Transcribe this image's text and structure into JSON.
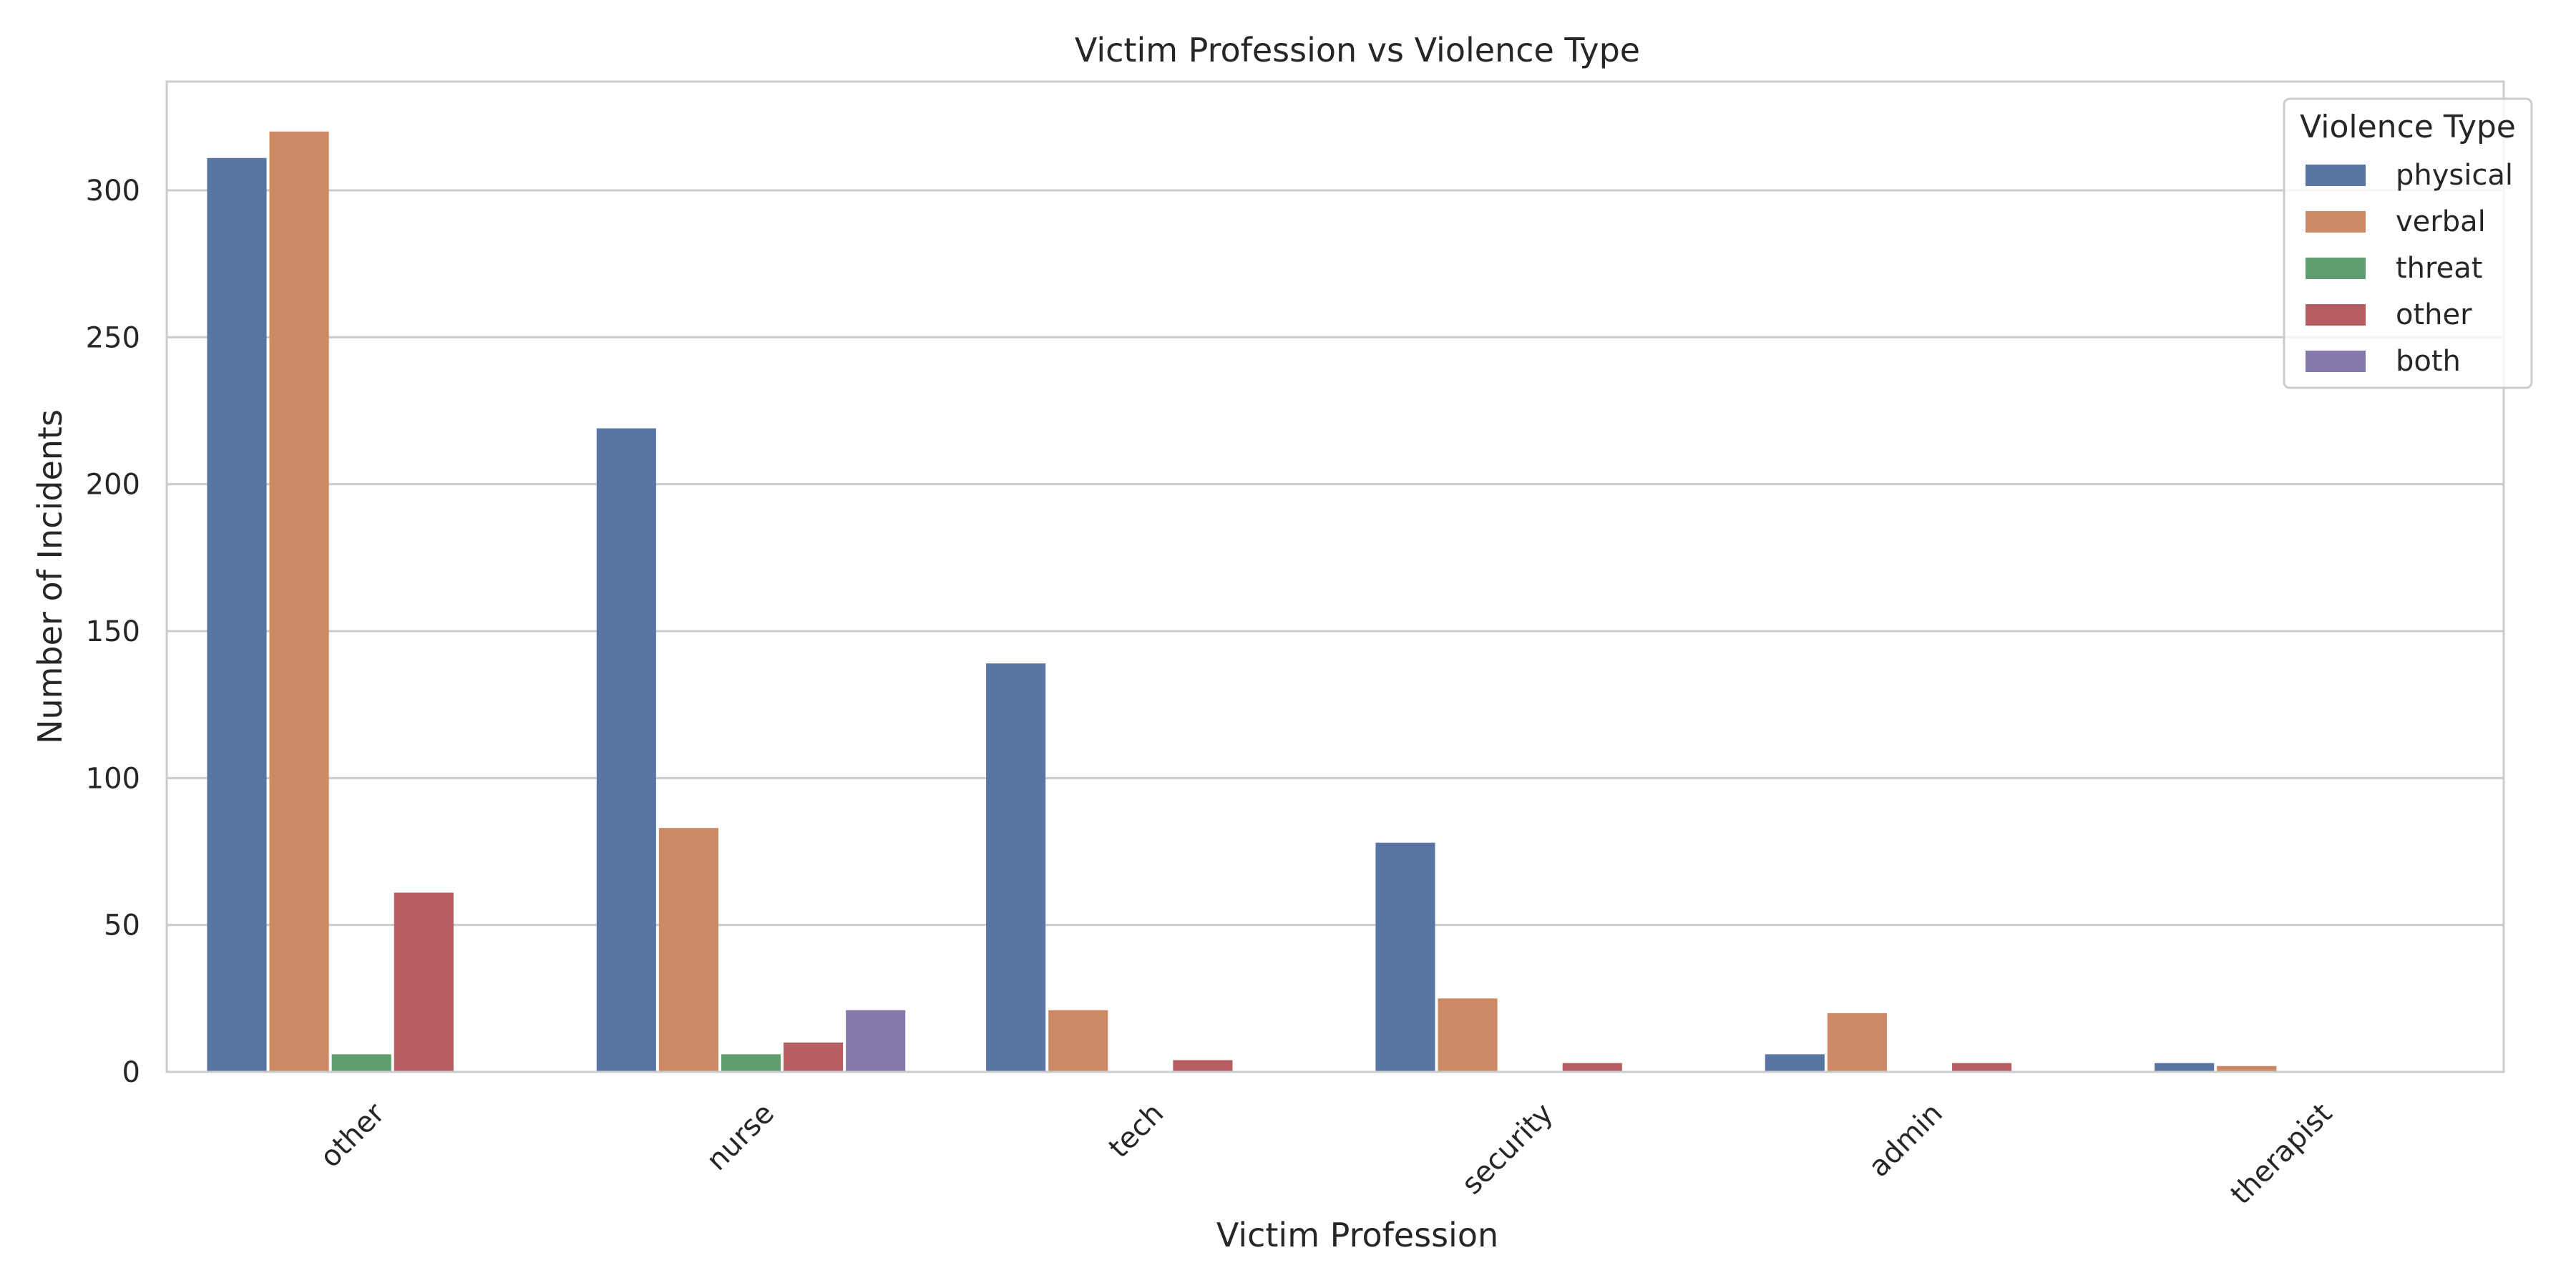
{
  "chart_data": {
    "type": "bar",
    "title": "Victim Profession vs Violence Type",
    "xlabel": "Victim Profession",
    "ylabel": "Number of Incidents",
    "categories": [
      "other",
      "nurse",
      "tech",
      "security",
      "admin",
      "therapist"
    ],
    "series": [
      {
        "name": "physical",
        "color": "#5875a4",
        "values": [
          311,
          219,
          139,
          78,
          6,
          3
        ]
      },
      {
        "name": "verbal",
        "color": "#cc8963",
        "values": [
          320,
          83,
          21,
          25,
          20,
          2
        ]
      },
      {
        "name": "threat",
        "color": "#5f9e6e",
        "values": [
          6,
          6,
          0,
          0,
          0,
          0
        ]
      },
      {
        "name": "other",
        "color": "#b55d60",
        "values": [
          61,
          10,
          4,
          3,
          3,
          0
        ]
      },
      {
        "name": "both",
        "color": "#857aab",
        "values": [
          0,
          21,
          0,
          0,
          0,
          0
        ]
      }
    ],
    "ylim": [
      0,
      337
    ],
    "yticks": [
      0,
      50,
      100,
      150,
      200,
      250,
      300
    ],
    "grid": true,
    "legend": {
      "title": "Violence Type",
      "placement": "top-right"
    }
  }
}
